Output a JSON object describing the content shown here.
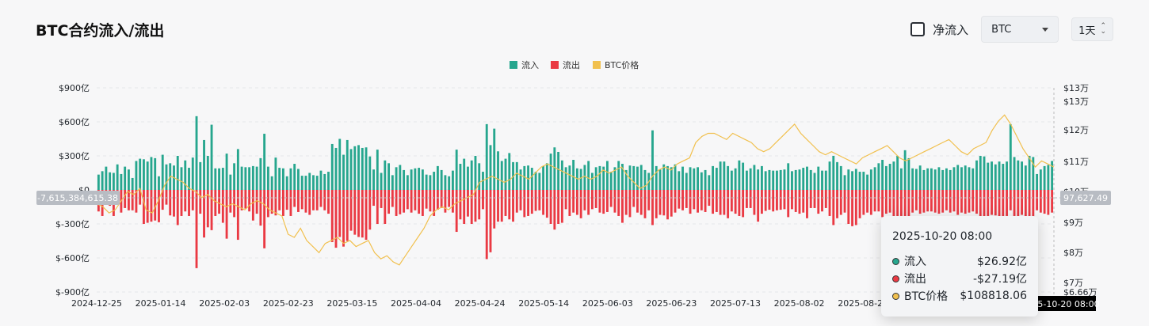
{
  "header": {
    "title": "BTC合约流入/流出",
    "net_inflow_label": "净流入",
    "asset_select": "BTC",
    "interval_select": "1天"
  },
  "colors": {
    "inflow": "#26a68e",
    "outflow": "#ea3943",
    "price": "#f1c04e"
  },
  "chart_data": {
    "type": "bar",
    "legend": [
      "流入",
      "流出",
      "BTC价格"
    ],
    "legend_position": "top-center",
    "x_tick_labels": [
      "2024-12-25",
      "2025-01-14",
      "2025-02-03",
      "2025-02-23",
      "2025-03-15",
      "2025-04-04",
      "2025-04-24",
      "2025-05-14",
      "2025-06-03",
      "2025-06-23",
      "2025-07-13",
      "2025-08-02",
      "2025-08-22"
    ],
    "y_left_ticks": [
      "$900亿",
      "$600亿",
      "$300亿",
      "$0",
      "$-300亿",
      "$-600亿",
      "$-900亿"
    ],
    "y_left_range": [
      -900,
      900
    ],
    "y_left_unit": "亿 USD",
    "y_right_ticks": [
      "$13万",
      "$13万",
      "$12万",
      "$11万",
      "$10万",
      "$9万",
      "$8万",
      "$7万",
      "$6.66万"
    ],
    "y_right_range": [
      66600,
      131000
    ],
    "crosshair_left_label": "-7,615,384,615.38",
    "crosshair_right_label": "97,627.49",
    "crosshair_x_label": "2025-10-20 08:00",
    "grid": true,
    "inflow_period1": [
      135,
      165,
      205,
      155,
      150,
      225,
      140,
      205,
      180,
      105,
      255,
      275,
      270,
      250,
      290,
      280,
      120,
      310,
      225,
      235,
      215,
      300,
      200,
      260,
      195,
      285,
      650,
      245,
      440,
      300,
      575,
      190,
      190,
      195,
      320,
      135,
      235,
      360,
      205,
      200,
      200,
      210,
      205,
      280,
      495,
      205,
      120,
      285,
      195,
      190,
      120,
      190,
      230,
      185,
      125,
      125,
      150,
      130,
      125,
      170,
      140,
      160,
      405,
      370,
      450,
      310,
      440,
      360,
      385,
      395,
      370,
      375,
      295,
      180,
      355,
      150,
      260,
      235,
      130,
      200,
      220,
      175,
      130,
      180,
      190,
      195,
      180,
      135,
      130,
      160,
      210,
      175,
      130,
      120,
      170,
      355,
      230,
      275,
      205,
      260,
      300,
      235,
      160,
      580,
      395,
      540,
      340,
      255,
      275,
      325,
      245,
      245,
      180,
      210,
      215,
      195,
      160,
      150,
      210,
      235,
      320,
      375,
      335,
      260
    ],
    "outflow_period1": [
      190,
      230,
      130,
      140,
      230,
      130,
      200,
      160,
      180,
      180,
      200,
      130,
      300,
      290,
      280,
      270,
      285,
      175,
      130,
      225,
      235,
      310,
      230,
      190,
      230,
      180,
      690,
      210,
      420,
      330,
      355,
      230,
      210,
      290,
      430,
      200,
      240,
      440,
      180,
      165,
      190,
      270,
      210,
      315,
      515,
      240,
      210,
      225,
      180,
      230,
      175,
      230,
      150,
      195,
      170,
      200,
      220,
      180,
      180,
      150,
      180,
      210,
      460,
      510,
      415,
      500,
      450,
      360,
      395,
      415,
      420,
      440,
      350,
      140,
      300,
      160,
      300,
      210,
      150,
      230,
      215,
      200,
      170,
      200,
      180,
      210,
      230,
      165,
      190,
      230,
      175,
      160,
      200,
      150,
      200,
      370,
      260,
      300,
      235,
      300,
      280,
      260,
      170,
      610,
      550,
      340,
      280,
      280,
      230,
      260,
      280,
      200,
      180,
      240,
      230,
      210,
      185,
      180,
      220,
      245,
      300,
      350,
      300,
      290
    ],
    "inflow_period2": [
      200,
      215,
      265,
      190,
      185,
      220,
      255,
      150,
      200,
      210,
      205,
      255,
      160,
      200,
      255,
      230,
      175,
      215,
      210,
      205,
      220,
      175,
      150,
      525,
      210,
      180,
      225,
      210,
      200,
      225,
      165,
      205,
      150,
      200,
      190,
      200,
      155,
      175,
      130,
      210,
      195,
      250,
      250,
      210,
      170,
      190,
      260,
      240,
      170,
      190,
      220,
      180,
      210,
      165,
      175,
      170,
      170,
      175,
      180,
      235,
      165,
      175,
      180,
      195,
      205,
      175,
      150,
      205,
      170,
      170,
      250,
      300,
      245,
      210,
      130,
      180,
      165,
      185,
      160,
      160,
      135,
      180,
      200,
      235,
      265,
      210,
      230,
      250,
      300,
      190,
      350,
      280,
      190,
      185,
      215,
      175,
      190,
      190,
      180,
      200,
      175,
      190,
      175,
      200,
      220,
      200,
      215,
      200,
      190,
      260,
      300,
      295,
      240,
      250,
      225,
      250,
      230,
      250,
      580,
      290,
      260,
      250,
      215,
      300,
      290,
      140,
      180,
      210,
      220,
      255
    ],
    "outflow_period2": [
      170,
      230,
      200,
      220,
      250,
      180,
      220,
      170,
      160,
      200,
      210,
      195,
      150,
      200,
      230,
      290,
      220,
      240,
      150,
      200,
      220,
      250,
      180,
      310,
      250,
      220,
      225,
      260,
      235,
      200,
      165,
      180,
      160,
      210,
      170,
      200,
      180,
      195,
      140,
      210,
      195,
      220,
      220,
      250,
      190,
      210,
      230,
      240,
      160,
      160,
      220,
      280,
      210,
      185,
      175,
      190,
      180,
      175,
      170,
      240,
      170,
      195,
      210,
      200,
      250,
      160,
      160,
      210,
      190,
      160,
      230,
      310,
      250,
      220,
      200,
      300,
      320,
      310,
      250,
      220,
      200,
      220,
      190,
      190,
      240,
      210,
      200,
      240,
      280,
      230,
      320,
      250,
      200,
      180,
      210,
      200,
      190,
      190,
      200,
      210,
      200,
      180,
      200,
      190,
      220,
      200,
      210,
      200,
      190,
      210,
      280,
      250,
      230,
      220,
      225,
      250,
      240,
      230,
      180,
      230,
      250,
      220,
      250,
      260,
      280,
      180,
      200,
      210,
      220,
      200
    ],
    "price": [
      96000,
      95000,
      93000,
      94000,
      97000,
      100000,
      99000,
      101000,
      94000,
      93000,
      97000,
      102000,
      105000,
      104000,
      103000,
      101000,
      100000,
      98000,
      99000,
      97000,
      96000,
      95000,
      96000,
      95000,
      94000,
      96000,
      97000,
      96000,
      94000,
      93000,
      92000,
      86000,
      85000,
      88000,
      84000,
      82000,
      80000,
      83000,
      84000,
      85000,
      83000,
      84000,
      82000,
      83000,
      84000,
      80000,
      78000,
      79000,
      77000,
      76000,
      79000,
      82000,
      85000,
      88000,
      92000,
      94000,
      95000,
      94000,
      96000,
      97000,
      98000,
      99000,
      103000,
      104000,
      105000,
      104000,
      103000,
      104000,
      106000,
      105000,
      104000,
      106000,
      108000,
      109000,
      108000,
      107000,
      106000,
      105000,
      104000,
      105000,
      104000,
      105000,
      107000,
      106000,
      107000,
      108000,
      105000,
      103000,
      101000,
      102000,
      105000,
      107000,
      108000,
      107000,
      109000,
      110000,
      111000,
      116000,
      118000,
      119000,
      119000,
      118000,
      117000,
      119000,
      118000,
      117000,
      116000,
      114000,
      113000,
      114000,
      116000,
      118000,
      120000,
      122000,
      119000,
      117000,
      115000,
      113000,
      112000,
      113000,
      112000,
      111000,
      110000,
      109000,
      111000,
      112000,
      113000,
      114000,
      115000,
      113000,
      111000,
      110000,
      111000,
      112000,
      113000,
      114000,
      115000,
      116000,
      117000,
      115000,
      113000,
      112000,
      114000,
      115000,
      116000,
      120000,
      123000,
      125000,
      122000,
      118000,
      114000,
      111000,
      108000,
      110000,
      109000,
      108000
    ]
  },
  "tooltip": {
    "date": "2025-10-20 08:00",
    "rows": [
      {
        "name": "流入",
        "value": "$26.92亿"
      },
      {
        "name": "流出",
        "value": "-$27.19亿"
      },
      {
        "name": "BTC价格",
        "value": "$108818.06"
      }
    ],
    "dot_colors": [
      "#26a68e",
      "#ea3943",
      "#f1c04e"
    ]
  }
}
